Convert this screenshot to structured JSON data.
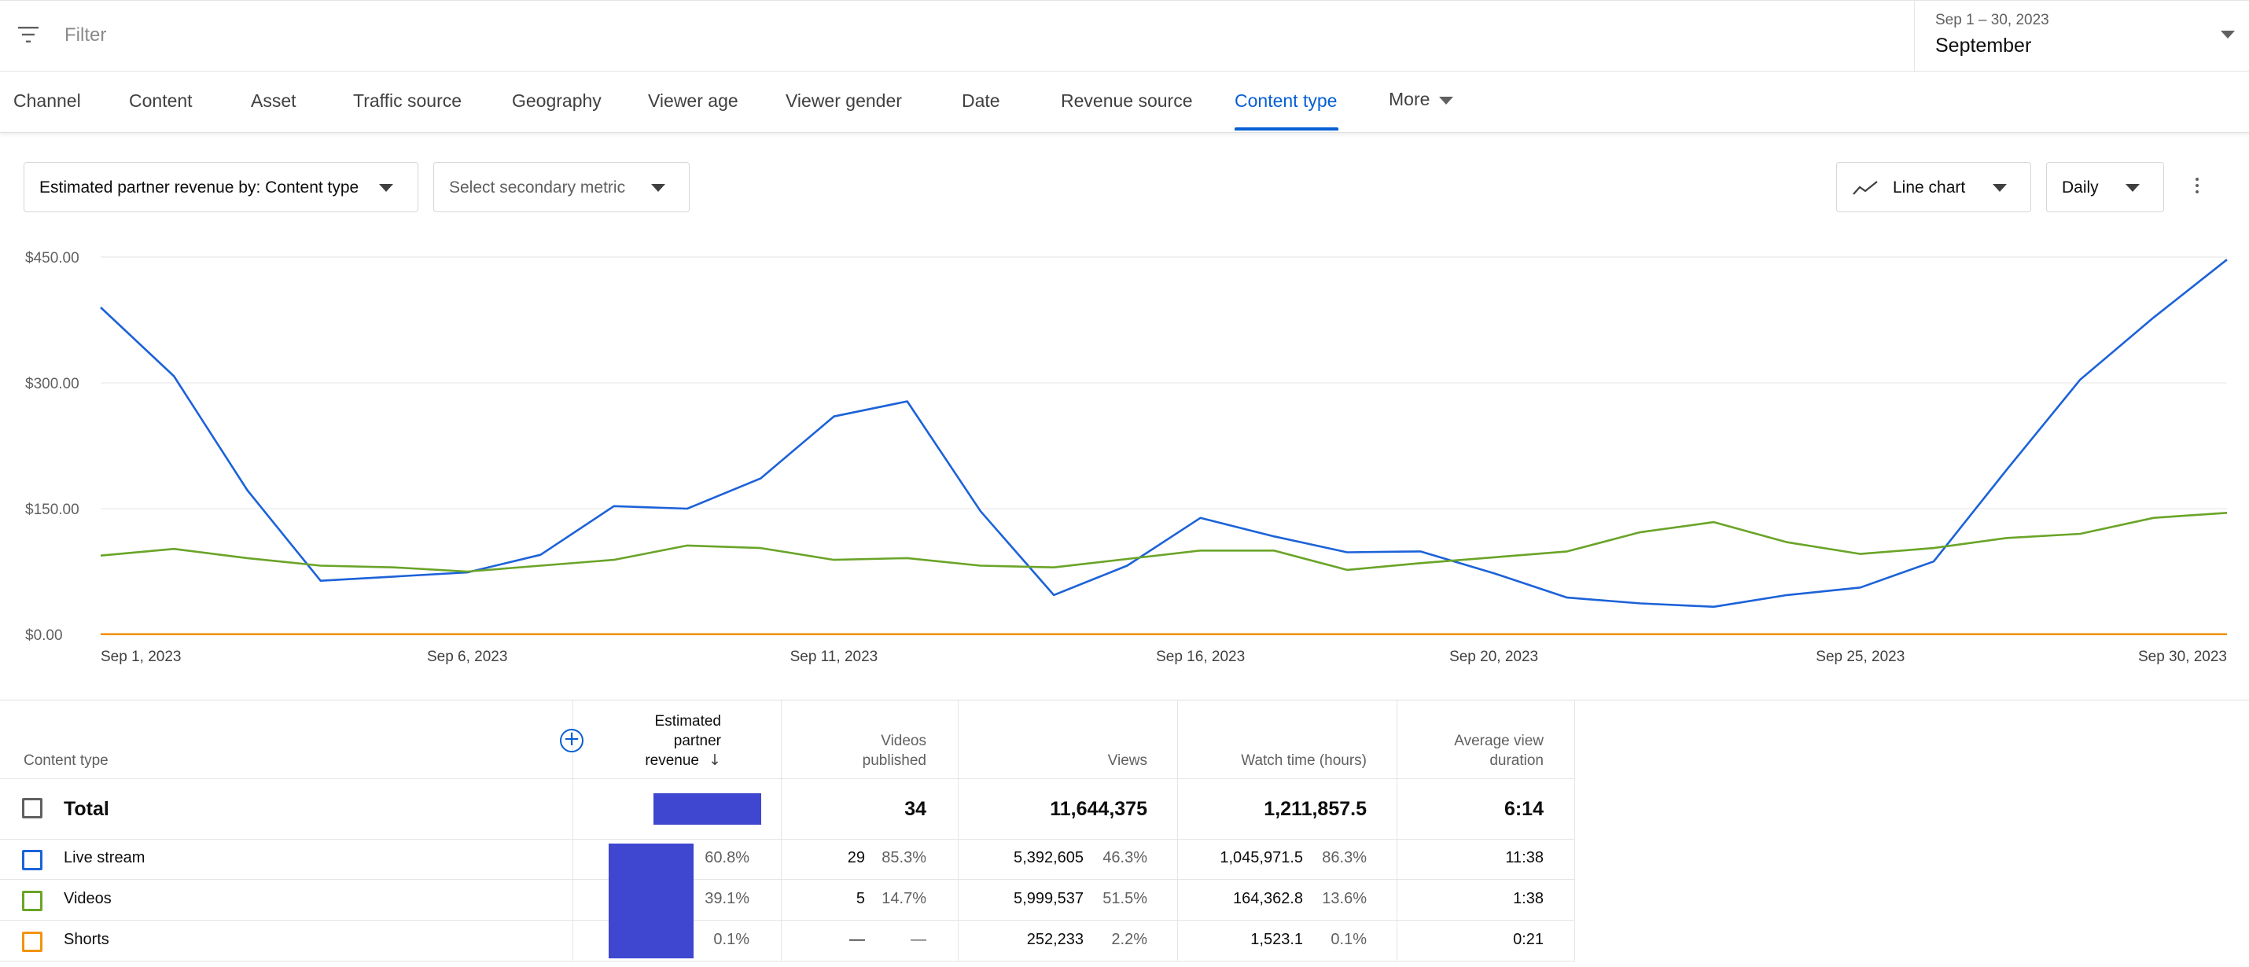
{
  "filter": {
    "placeholder": "Filter"
  },
  "date_picker": {
    "range": "Sep 1 – 30, 2023",
    "label": "September"
  },
  "tabs": [
    "Channel",
    "Content",
    "Asset",
    "Traffic source",
    "Geography",
    "Viewer age",
    "Viewer gender",
    "Date",
    "Revenue source",
    "Content type",
    "More"
  ],
  "active_tab": "Content type",
  "controls": {
    "primary_metric": "Estimated partner revenue by: Content type",
    "secondary_metric": "Select secondary metric",
    "chart_type": "Line chart",
    "interval": "Daily"
  },
  "chart_data": {
    "type": "line",
    "y_ticks": [
      "$0.00",
      "$150.00",
      "$300.00",
      "$450.00"
    ],
    "ylim": [
      0,
      450
    ],
    "x_tick_labels": [
      "Sep 1, 2023",
      "Sep 6, 2023",
      "Sep 11, 2023",
      "Sep 16, 2023",
      "Sep 20, 2023",
      "Sep 25, 2023",
      "Sep 30, 2023"
    ],
    "x_tick_days": [
      1,
      6,
      11,
      16,
      20,
      25,
      30
    ],
    "grid": true,
    "series": [
      {
        "color": "#1c62d9",
        "values": [
          390,
          308,
          172,
          64,
          69,
          74,
          95,
          153,
          150,
          186,
          260,
          278,
          147,
          47,
          82,
          139,
          117,
          98,
          99,
          73,
          44,
          37,
          33,
          47,
          56,
          87,
          197,
          304,
          378,
          447
        ]
      },
      {
        "color": "#6aa428",
        "values": [
          94,
          102,
          91,
          82,
          80,
          75,
          82,
          89,
          106,
          103,
          89,
          91,
          82,
          80,
          90,
          100,
          100,
          77,
          85,
          92,
          99,
          122,
          134,
          110,
          96,
          103,
          115,
          120,
          139,
          145
        ]
      },
      {
        "color": "#f29311",
        "values": [
          0.3,
          0.3,
          0.3,
          0.3,
          0.3,
          0.3,
          0.3,
          0.3,
          0.3,
          0.3,
          0.3,
          0.3,
          0.3,
          0.3,
          0.3,
          0.3,
          0.3,
          0.3,
          0.3,
          0.3,
          0.3,
          0.3,
          0.3,
          0.3,
          0.3,
          0.3,
          0.3,
          0.3,
          0.3,
          0.3
        ]
      }
    ]
  },
  "table": {
    "headers": {
      "content_type": "Content type",
      "revenue_l1": "Estimated",
      "revenue_l2": "partner",
      "revenue_l3": "revenue",
      "videos_l1": "Videos",
      "videos_l2": "published",
      "views": "Views",
      "watch_time": "Watch time (hours)",
      "avd_l1": "Average view",
      "avd_l2": "duration"
    },
    "total": {
      "label": "Total",
      "revenue_share": 1.0,
      "videos": "34",
      "views": "11,644,375",
      "watch_time": "1,211,857.5",
      "avd": "6:14"
    },
    "rows": [
      {
        "label": "Live stream",
        "color": "#1c62d9",
        "revenue_pct": "60.8%",
        "revenue_share": 0.608,
        "videos": "29",
        "videos_pct": "85.3%",
        "views": "5,392,605",
        "views_pct": "46.3%",
        "watch_time": "1,045,971.5",
        "watch_pct": "86.3%",
        "avd": "11:38"
      },
      {
        "label": "Videos",
        "color": "#6aa428",
        "revenue_pct": "39.1%",
        "revenue_share": 0.391,
        "videos": "5",
        "videos_pct": "14.7%",
        "views": "5,999,537",
        "views_pct": "51.5%",
        "watch_time": "164,362.8",
        "watch_pct": "13.6%",
        "avd": "1:38"
      },
      {
        "label": "Shorts",
        "color": "#f29311",
        "revenue_pct": "0.1%",
        "revenue_share": 0.001,
        "videos": "—",
        "videos_pct": "—",
        "views": "252,233",
        "views_pct": "2.2%",
        "watch_time": "1,523.1",
        "watch_pct": "0.1%",
        "avd": "0:21"
      }
    ]
  }
}
